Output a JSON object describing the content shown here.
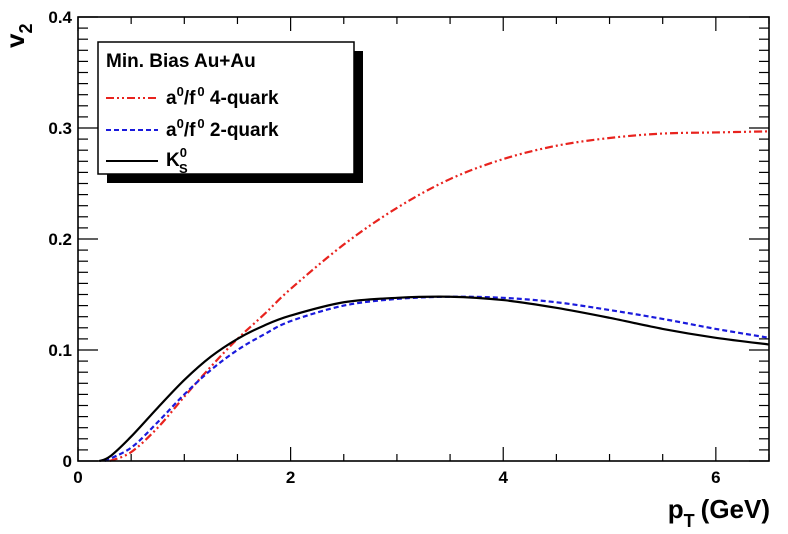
{
  "chart_data": {
    "type": "line",
    "xlabel": {
      "main": "p",
      "sub": "T",
      "unit": "(GeV)"
    },
    "ylabel": {
      "main": "v",
      "sub": "2"
    },
    "xlim": [
      0,
      6.5
    ],
    "ylim": [
      0,
      0.4
    ],
    "x_ticks": [
      0,
      2,
      4,
      6
    ],
    "x_tick_labels": [
      "0",
      "2",
      "4",
      "6"
    ],
    "y_ticks": [
      0,
      0.1,
      0.2,
      0.3,
      0.4
    ],
    "y_tick_labels": [
      "0",
      "0.1",
      "0.2",
      "0.3",
      "0.4"
    ],
    "grid": false,
    "legend": {
      "placement": "top-left",
      "title": "Min. Bias Au+Au",
      "entries": [
        {
          "base": "a",
          "sup1": "0",
          "mid": "/f",
          "sup2": "0",
          "rest": " 4-quark"
        },
        {
          "base": "a",
          "sup1": "0",
          "mid": "/f",
          "sup2": "0",
          "rest": " 2-quark"
        },
        {
          "base": "K",
          "sup": "0",
          "sub": "S"
        }
      ]
    },
    "series": [
      {
        "color": "#e8231e",
        "style": "dash-dot-dot",
        "x": [
          0.3,
          0.5,
          0.75,
          1.0,
          1.25,
          1.5,
          1.75,
          2.0,
          2.5,
          3.0,
          3.5,
          4.0,
          4.5,
          5.0,
          5.5,
          6.0,
          6.5
        ],
        "y": [
          0.0,
          0.008,
          0.03,
          0.058,
          0.085,
          0.11,
          0.132,
          0.155,
          0.195,
          0.228,
          0.254,
          0.272,
          0.284,
          0.291,
          0.295,
          0.296,
          0.297
        ]
      },
      {
        "color": "#1a1adc",
        "style": "dashed",
        "x": [
          0.25,
          0.5,
          0.75,
          1.0,
          1.25,
          1.5,
          1.75,
          2.0,
          2.5,
          3.0,
          3.5,
          4.0,
          4.5,
          5.0,
          5.5,
          6.0,
          6.5
        ],
        "y": [
          0.0,
          0.012,
          0.035,
          0.06,
          0.082,
          0.1,
          0.114,
          0.126,
          0.14,
          0.146,
          0.148,
          0.147,
          0.143,
          0.136,
          0.128,
          0.119,
          0.111
        ]
      },
      {
        "color": "#000000",
        "style": "solid",
        "x": [
          0.2,
          0.3,
          0.5,
          0.75,
          1.0,
          1.25,
          1.5,
          1.75,
          2.0,
          2.5,
          3.0,
          3.5,
          4.0,
          4.5,
          5.0,
          5.5,
          6.0,
          6.5
        ],
        "y": [
          0.0,
          0.004,
          0.022,
          0.048,
          0.073,
          0.094,
          0.11,
          0.122,
          0.131,
          0.143,
          0.147,
          0.148,
          0.145,
          0.138,
          0.129,
          0.119,
          0.111,
          0.105
        ]
      }
    ]
  }
}
